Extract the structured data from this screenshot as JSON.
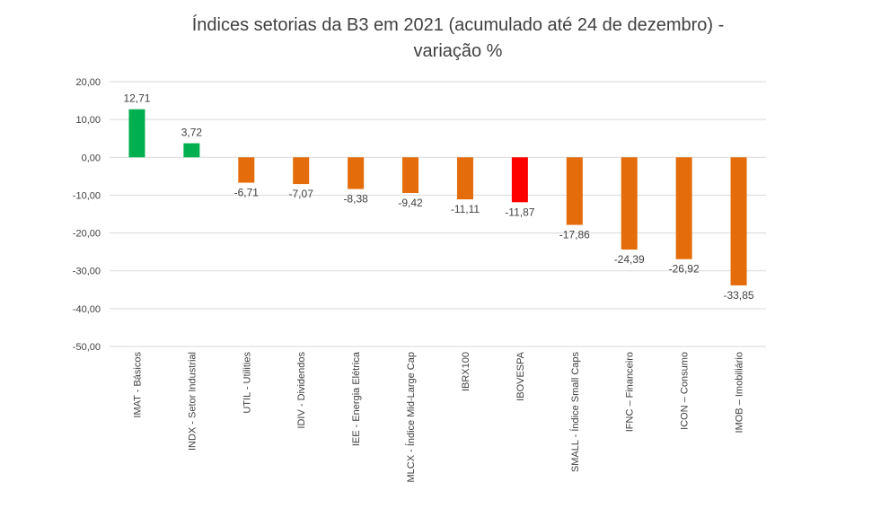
{
  "chart_data": {
    "type": "bar",
    "title": "Índices setorias da B3 em 2021 (acumulado até 24 de dezembro) -",
    "subtitle": "variação %",
    "categories": [
      "IMAT - Básicos",
      "INDX - Setor Industrial",
      "UTIL - Utilities",
      "IDIV - Dividendos",
      "IEE - Energia Elétrica",
      "MLCX - Índice Mid-Large Cap",
      "IBRX100",
      "IBOVESPA",
      "SMALL - Índice Small Caps",
      "IFNC – Financeiro",
      "ICON – Consumo",
      "IMOB – Imobiliário"
    ],
    "values": [
      12.71,
      3.72,
      -6.71,
      -7.07,
      -8.38,
      -9.42,
      -11.11,
      -11.87,
      -17.86,
      -24.39,
      -26.92,
      -33.85
    ],
    "value_labels": [
      "12,71",
      "3,72",
      "-6,71",
      "-7,07",
      "-8,38",
      "-9,42",
      "-11,11",
      "-11,87",
      "-17,86",
      "-24,39",
      "-26,92",
      "-33,85"
    ],
    "bar_colors": [
      "#00B050",
      "#00B050",
      "#E46C0A",
      "#E46C0A",
      "#E46C0A",
      "#E46C0A",
      "#E46C0A",
      "#FF0000",
      "#E46C0A",
      "#E46C0A",
      "#E46C0A",
      "#E46C0A"
    ],
    "ylim": [
      -50,
      20
    ],
    "yticks": [
      20,
      10,
      0,
      -10,
      -20,
      -30,
      -40,
      -50
    ],
    "ytick_labels": [
      "20,00",
      "10,00",
      "0,00",
      "-10,00",
      "-20,00",
      "-30,00",
      "-40,00",
      "-50,00"
    ],
    "grid": true,
    "legend": "none",
    "xlabel": "",
    "ylabel": ""
  }
}
